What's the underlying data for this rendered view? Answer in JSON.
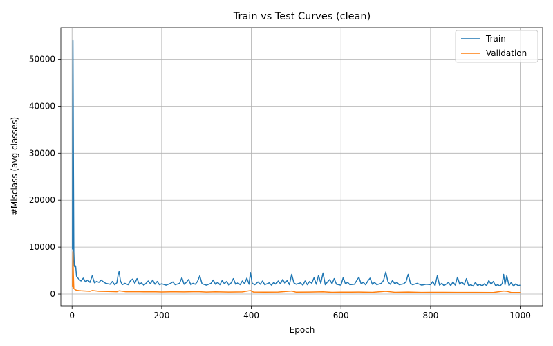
{
  "chart_data": {
    "type": "line",
    "title": "Train vs Test Curves (clean)",
    "xlabel": "Epoch",
    "ylabel": "#Misclass (avg classes)",
    "xlim": [
      -25,
      1050
    ],
    "ylim": [
      -2500,
      56700
    ],
    "xticks": [
      0,
      200,
      400,
      600,
      800,
      1000
    ],
    "yticks": [
      0,
      10000,
      20000,
      30000,
      40000,
      50000
    ],
    "grid": true,
    "legend_position": "top-right",
    "series": [
      {
        "name": "Train",
        "color": "#1f77b4",
        "points": [
          [
            1,
            9500
          ],
          [
            2,
            54000
          ],
          [
            3,
            30000
          ],
          [
            4,
            9000
          ],
          [
            5,
            6000
          ],
          [
            6,
            5800
          ],
          [
            8,
            6000
          ],
          [
            10,
            3800
          ],
          [
            15,
            3200
          ],
          [
            20,
            2800
          ],
          [
            25,
            3400
          ],
          [
            30,
            2600
          ],
          [
            35,
            3000
          ],
          [
            40,
            2500
          ],
          [
            45,
            3900
          ],
          [
            50,
            2400
          ],
          [
            55,
            2700
          ],
          [
            60,
            2500
          ],
          [
            65,
            3000
          ],
          [
            70,
            2600
          ],
          [
            75,
            2300
          ],
          [
            80,
            2200
          ],
          [
            85,
            2100
          ],
          [
            90,
            2700
          ],
          [
            95,
            2000
          ],
          [
            100,
            2400
          ],
          [
            103,
            4200
          ],
          [
            105,
            4800
          ],
          [
            108,
            2800
          ],
          [
            112,
            2000
          ],
          [
            118,
            2300
          ],
          [
            125,
            2000
          ],
          [
            130,
            2800
          ],
          [
            135,
            3200
          ],
          [
            140,
            2300
          ],
          [
            145,
            3300
          ],
          [
            150,
            2100
          ],
          [
            155,
            2400
          ],
          [
            160,
            1900
          ],
          [
            165,
            2300
          ],
          [
            170,
            2800
          ],
          [
            175,
            2200
          ],
          [
            180,
            3000
          ],
          [
            185,
            2100
          ],
          [
            190,
            2700
          ],
          [
            195,
            2000
          ],
          [
            200,
            2200
          ],
          [
            210,
            1900
          ],
          [
            220,
            2300
          ],
          [
            225,
            2600
          ],
          [
            230,
            2000
          ],
          [
            240,
            2300
          ],
          [
            245,
            3500
          ],
          [
            250,
            2100
          ],
          [
            255,
            2500
          ],
          [
            260,
            3100
          ],
          [
            265,
            2000
          ],
          [
            270,
            2300
          ],
          [
            275,
            2100
          ],
          [
            280,
            2700
          ],
          [
            285,
            3900
          ],
          [
            290,
            2200
          ],
          [
            300,
            1900
          ],
          [
            310,
            2300
          ],
          [
            315,
            3000
          ],
          [
            320,
            2100
          ],
          [
            325,
            2500
          ],
          [
            330,
            2000
          ],
          [
            335,
            2900
          ],
          [
            340,
            2200
          ],
          [
            345,
            2700
          ],
          [
            350,
            1900
          ],
          [
            355,
            2400
          ],
          [
            360,
            3300
          ],
          [
            365,
            2100
          ],
          [
            370,
            2400
          ],
          [
            375,
            2000
          ],
          [
            380,
            2800
          ],
          [
            385,
            2200
          ],
          [
            390,
            3400
          ],
          [
            395,
            2100
          ],
          [
            398,
            4600
          ],
          [
            402,
            2300
          ],
          [
            408,
            2000
          ],
          [
            415,
            2600
          ],
          [
            420,
            2100
          ],
          [
            425,
            2800
          ],
          [
            430,
            2000
          ],
          [
            440,
            2400
          ],
          [
            445,
            1900
          ],
          [
            450,
            2500
          ],
          [
            455,
            2100
          ],
          [
            460,
            2800
          ],
          [
            465,
            2200
          ],
          [
            470,
            3100
          ],
          [
            475,
            2300
          ],
          [
            480,
            2900
          ],
          [
            485,
            2000
          ],
          [
            490,
            4200
          ],
          [
            495,
            2400
          ],
          [
            500,
            2100
          ],
          [
            510,
            2400
          ],
          [
            515,
            1900
          ],
          [
            520,
            2800
          ],
          [
            525,
            2000
          ],
          [
            530,
            2700
          ],
          [
            535,
            2300
          ],
          [
            540,
            3500
          ],
          [
            545,
            2100
          ],
          [
            550,
            4000
          ],
          [
            555,
            2300
          ],
          [
            560,
            4500
          ],
          [
            565,
            2000
          ],
          [
            570,
            2600
          ],
          [
            575,
            3100
          ],
          [
            580,
            2200
          ],
          [
            585,
            3300
          ],
          [
            590,
            2100
          ],
          [
            600,
            1900
          ],
          [
            605,
            3500
          ],
          [
            610,
            2200
          ],
          [
            615,
            2500
          ],
          [
            620,
            2000
          ],
          [
            630,
            2100
          ],
          [
            640,
            3600
          ],
          [
            645,
            2200
          ],
          [
            650,
            2500
          ],
          [
            655,
            2000
          ],
          [
            660,
            2800
          ],
          [
            665,
            3400
          ],
          [
            670,
            2100
          ],
          [
            675,
            2500
          ],
          [
            680,
            2000
          ],
          [
            690,
            2300
          ],
          [
            695,
            2900
          ],
          [
            700,
            4700
          ],
          [
            705,
            2600
          ],
          [
            710,
            2100
          ],
          [
            715,
            2900
          ],
          [
            720,
            2200
          ],
          [
            725,
            2500
          ],
          [
            730,
            2000
          ],
          [
            740,
            2200
          ],
          [
            745,
            2600
          ],
          [
            750,
            4200
          ],
          [
            755,
            2300
          ],
          [
            760,
            2000
          ],
          [
            770,
            2300
          ],
          [
            780,
            1900
          ],
          [
            790,
            2100
          ],
          [
            800,
            2000
          ],
          [
            805,
            2700
          ],
          [
            810,
            1800
          ],
          [
            815,
            3900
          ],
          [
            820,
            1900
          ],
          [
            825,
            2300
          ],
          [
            830,
            1800
          ],
          [
            840,
            2500
          ],
          [
            845,
            1800
          ],
          [
            850,
            2600
          ],
          [
            855,
            1900
          ],
          [
            860,
            3600
          ],
          [
            865,
            2100
          ],
          [
            870,
            2600
          ],
          [
            875,
            2000
          ],
          [
            880,
            3300
          ],
          [
            885,
            1800
          ],
          [
            890,
            2000
          ],
          [
            895,
            1700
          ],
          [
            900,
            2500
          ],
          [
            905,
            1800
          ],
          [
            910,
            2100
          ],
          [
            915,
            1700
          ],
          [
            920,
            2200
          ],
          [
            925,
            1800
          ],
          [
            930,
            2900
          ],
          [
            935,
            2100
          ],
          [
            940,
            2700
          ],
          [
            945,
            1800
          ],
          [
            950,
            2000
          ],
          [
            955,
            1700
          ],
          [
            960,
            2300
          ],
          [
            963,
            4200
          ],
          [
            966,
            2000
          ],
          [
            970,
            3900
          ],
          [
            975,
            1800
          ],
          [
            980,
            2500
          ],
          [
            985,
            1700
          ],
          [
            990,
            2200
          ],
          [
            995,
            1800
          ],
          [
            1000,
            1900
          ]
        ]
      },
      {
        "name": "Validation",
        "color": "#ff7f0e",
        "points": [
          [
            1,
            1500
          ],
          [
            2,
            9000
          ],
          [
            3,
            4000
          ],
          [
            4,
            1200
          ],
          [
            6,
            1000
          ],
          [
            8,
            900
          ],
          [
            10,
            800
          ],
          [
            20,
            700
          ],
          [
            30,
            650
          ],
          [
            40,
            600
          ],
          [
            45,
            750
          ],
          [
            60,
            600
          ],
          [
            80,
            550
          ],
          [
            100,
            500
          ],
          [
            105,
            700
          ],
          [
            120,
            500
          ],
          [
            140,
            520
          ],
          [
            160,
            480
          ],
          [
            180,
            500
          ],
          [
            200,
            450
          ],
          [
            220,
            480
          ],
          [
            250,
            470
          ],
          [
            280,
            520
          ],
          [
            300,
            430
          ],
          [
            320,
            480
          ],
          [
            350,
            420
          ],
          [
            380,
            460
          ],
          [
            398,
            750
          ],
          [
            405,
            420
          ],
          [
            430,
            400
          ],
          [
            460,
            430
          ],
          [
            490,
            650
          ],
          [
            500,
            400
          ],
          [
            530,
            420
          ],
          [
            560,
            480
          ],
          [
            580,
            380
          ],
          [
            600,
            400
          ],
          [
            640,
            420
          ],
          [
            670,
            380
          ],
          [
            700,
            600
          ],
          [
            720,
            380
          ],
          [
            750,
            420
          ],
          [
            780,
            360
          ],
          [
            800,
            380
          ],
          [
            830,
            370
          ],
          [
            860,
            350
          ],
          [
            900,
            360
          ],
          [
            940,
            340
          ],
          [
            963,
            650
          ],
          [
            970,
            600
          ],
          [
            980,
            340
          ],
          [
            1000,
            330
          ]
        ]
      }
    ]
  }
}
